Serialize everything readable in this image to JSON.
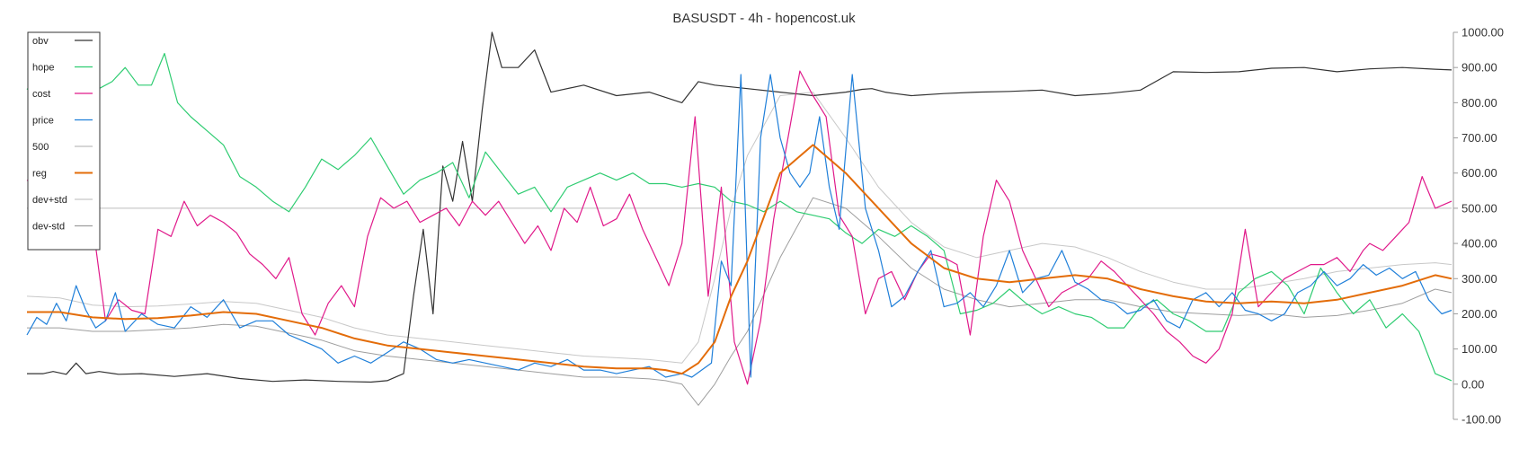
{
  "chart_data": {
    "type": "line",
    "title": "BASUSDT - 4h - hopencost.uk",
    "xlabel": "",
    "ylabel": "",
    "ylim": [
      -100,
      1000
    ],
    "y_ticks": [
      "1000.00",
      "900.00",
      "800.00",
      "700.00",
      "600.00",
      "500.00",
      "400.00",
      "300.00",
      "200.00",
      "100.00",
      "0.00",
      "-100.00"
    ],
    "grid": false,
    "reference_line": 500,
    "legend_position": "top-left",
    "legend": [
      {
        "name": "obv",
        "color": "#333333"
      },
      {
        "name": "hope",
        "color": "#2ecc71"
      },
      {
        "name": "cost",
        "color": "#e0198a"
      },
      {
        "name": "price",
        "color": "#1f7fd9"
      },
      {
        "name": "500",
        "color": "#bdbdbd"
      },
      {
        "name": "reg",
        "color": "#e36c09"
      },
      {
        "name": "dev+std",
        "color": "#c8c8c8"
      },
      {
        "name": "dev-std",
        "color": "#9e9e9e"
      }
    ],
    "series": [
      {
        "name": "obv",
        "color": "#333333",
        "width": 1.2,
        "x": [
          0,
          5,
          8,
          12,
          15,
          18,
          22,
          28,
          35,
          45,
          55,
          65,
          75,
          85,
          95,
          105,
          110,
          115,
          118,
          121,
          124,
          127,
          130,
          133,
          136,
          139,
          142,
          145,
          150,
          155,
          160,
          170,
          180,
          190,
          200,
          205,
          210,
          220,
          230,
          240,
          250,
          255,
          258,
          262,
          265,
          270,
          280,
          290,
          300,
          310,
          320,
          330,
          340,
          350,
          360,
          370,
          380,
          390,
          400,
          410,
          420,
          430,
          435
        ],
        "y": [
          30,
          30,
          36,
          28,
          60,
          30,
          36,
          28,
          30,
          22,
          30,
          16,
          8,
          12,
          8,
          6,
          10,
          30,
          250,
          440,
          200,
          620,
          520,
          690,
          520,
          780,
          1000,
          900,
          900,
          950,
          830,
          850,
          820,
          830,
          800,
          860,
          850,
          840,
          830,
          820,
          830,
          838,
          840,
          830,
          826,
          820,
          826,
          830,
          832,
          836,
          820,
          826,
          836,
          888,
          886,
          888,
          898,
          900,
          888,
          896,
          900,
          895,
          893
        ]
      },
      {
        "name": "hope",
        "color": "#2ecc71",
        "width": 1.2,
        "x": [
          0,
          3,
          6,
          10,
          14,
          18,
          22,
          26,
          30,
          34,
          38,
          42,
          46,
          50,
          55,
          60,
          65,
          70,
          75,
          80,
          85,
          90,
          95,
          100,
          105,
          110,
          115,
          120,
          125,
          130,
          135,
          140,
          145,
          150,
          155,
          160,
          165,
          170,
          175,
          180,
          185,
          190,
          195,
          200,
          205,
          210,
          215,
          220,
          225,
          230,
          235,
          240,
          245,
          250,
          255,
          260,
          265,
          270,
          275,
          280,
          285,
          290,
          295,
          300,
          305,
          310,
          315,
          320,
          325,
          330,
          335,
          340,
          345,
          350,
          355,
          360,
          365,
          370,
          375,
          380,
          385,
          390,
          395,
          400,
          405,
          410,
          415,
          420,
          425,
          430,
          435
        ],
        "y": [
          840,
          810,
          830,
          790,
          740,
          920,
          840,
          860,
          900,
          850,
          850,
          940,
          800,
          760,
          720,
          680,
          590,
          560,
          520,
          490,
          560,
          640,
          610,
          650,
          700,
          620,
          540,
          580,
          600,
          630,
          530,
          660,
          600,
          540,
          560,
          490,
          560,
          580,
          600,
          580,
          600,
          570,
          570,
          560,
          570,
          560,
          520,
          510,
          490,
          520,
          490,
          480,
          470,
          430,
          400,
          440,
          420,
          450,
          420,
          380,
          200,
          210,
          230,
          270,
          230,
          200,
          220,
          200,
          190,
          160,
          160,
          220,
          240,
          200,
          180,
          150,
          150,
          260,
          300,
          320,
          280,
          200,
          330,
          260,
          200,
          240,
          160,
          200,
          150,
          30,
          10
        ]
      },
      {
        "name": "cost",
        "color": "#e0198a",
        "width": 1.2,
        "x": [
          0,
          4,
          8,
          12,
          16,
          20,
          24,
          28,
          32,
          36,
          40,
          44,
          48,
          52,
          56,
          60,
          64,
          68,
          72,
          76,
          80,
          84,
          88,
          92,
          96,
          100,
          104,
          108,
          112,
          116,
          120,
          124,
          128,
          132,
          136,
          140,
          144,
          148,
          152,
          156,
          160,
          164,
          168,
          172,
          176,
          180,
          184,
          188,
          192,
          196,
          200,
          204,
          208,
          212,
          216,
          220,
          224,
          228,
          232,
          236,
          240,
          244,
          248,
          252,
          256,
          260,
          264,
          268,
          272,
          276,
          280,
          284,
          288,
          292,
          296,
          300,
          304,
          308,
          312,
          316,
          320,
          324,
          328,
          332,
          336,
          340,
          344,
          348,
          352,
          356,
          360,
          364,
          368,
          372,
          376,
          380,
          384,
          388,
          392,
          396,
          400,
          404,
          408,
          410,
          414,
          418,
          422,
          426,
          430,
          435
        ],
        "y": [
          580,
          560,
          690,
          650,
          600,
          460,
          180,
          240,
          210,
          200,
          440,
          420,
          520,
          450,
          480,
          460,
          430,
          370,
          340,
          300,
          360,
          200,
          140,
          230,
          280,
          220,
          420,
          530,
          500,
          520,
          460,
          480,
          500,
          450,
          520,
          480,
          520,
          460,
          400,
          450,
          380,
          500,
          460,
          560,
          450,
          470,
          540,
          440,
          360,
          280,
          400,
          760,
          250,
          560,
          120,
          0,
          180,
          470,
          680,
          890,
          820,
          760,
          480,
          420,
          200,
          300,
          320,
          240,
          320,
          370,
          360,
          340,
          140,
          420,
          580,
          520,
          380,
          300,
          220,
          260,
          280,
          300,
          350,
          320,
          280,
          240,
          200,
          150,
          120,
          80,
          60,
          100,
          200,
          440,
          220,
          260,
          300,
          320,
          340,
          340,
          360,
          320,
          380,
          400,
          380,
          420,
          460,
          590,
          500,
          520
        ]
      },
      {
        "name": "price",
        "color": "#1f7fd9",
        "width": 1.2,
        "x": [
          0,
          3,
          6,
          9,
          12,
          15,
          18,
          21,
          24,
          27,
          30,
          35,
          40,
          45,
          50,
          55,
          60,
          65,
          70,
          75,
          80,
          85,
          90,
          95,
          100,
          105,
          110,
          115,
          120,
          125,
          130,
          135,
          140,
          145,
          150,
          155,
          160,
          165,
          170,
          175,
          180,
          185,
          190,
          195,
          200,
          203,
          206,
          209,
          212,
          215,
          218,
          221,
          224,
          227,
          230,
          233,
          236,
          239,
          242,
          245,
          248,
          252,
          256,
          260,
          264,
          268,
          272,
          276,
          280,
          284,
          288,
          292,
          296,
          300,
          304,
          308,
          312,
          316,
          320,
          324,
          328,
          332,
          336,
          340,
          344,
          348,
          352,
          356,
          360,
          364,
          368,
          372,
          376,
          380,
          384,
          388,
          392,
          396,
          400,
          404,
          408,
          412,
          416,
          420,
          424,
          428,
          432,
          435
        ],
        "y": [
          140,
          190,
          170,
          230,
          180,
          280,
          210,
          160,
          180,
          260,
          150,
          200,
          170,
          160,
          220,
          190,
          240,
          160,
          180,
          180,
          140,
          120,
          100,
          60,
          80,
          60,
          90,
          120,
          100,
          70,
          60,
          70,
          60,
          50,
          40,
          60,
          50,
          70,
          40,
          40,
          30,
          40,
          50,
          20,
          30,
          20,
          40,
          60,
          350,
          280,
          880,
          20,
          700,
          880,
          700,
          600,
          560,
          600,
          760,
          560,
          440,
          880,
          500,
          380,
          220,
          250,
          320,
          380,
          220,
          230,
          260,
          220,
          280,
          380,
          260,
          300,
          310,
          380,
          290,
          270,
          240,
          230,
          200,
          210,
          240,
          180,
          160,
          240,
          260,
          220,
          260,
          210,
          200,
          180,
          200,
          260,
          280,
          320,
          280,
          300,
          340,
          310,
          330,
          300,
          320,
          240,
          200,
          210
        ]
      },
      {
        "name": "500",
        "color": "#bdbdbd",
        "width": 1.0,
        "x": [
          0,
          435
        ],
        "y": [
          500,
          500
        ]
      },
      {
        "name": "reg",
        "color": "#e36c09",
        "width": 2.0,
        "x": [
          0,
          10,
          20,
          30,
          40,
          50,
          60,
          70,
          80,
          90,
          100,
          110,
          120,
          130,
          140,
          150,
          160,
          170,
          180,
          190,
          195,
          200,
          205,
          210,
          215,
          220,
          230,
          240,
          250,
          260,
          270,
          280,
          290,
          300,
          310,
          320,
          330,
          340,
          350,
          360,
          370,
          380,
          390,
          400,
          410,
          420,
          430,
          435
        ],
        "y": [
          205,
          205,
          190,
          185,
          188,
          195,
          205,
          200,
          180,
          160,
          130,
          110,
          100,
          90,
          80,
          70,
          60,
          50,
          45,
          45,
          40,
          30,
          60,
          120,
          250,
          350,
          600,
          680,
          600,
          500,
          400,
          330,
          300,
          290,
          300,
          310,
          300,
          270,
          250,
          235,
          230,
          235,
          230,
          240,
          260,
          280,
          310,
          300
        ]
      },
      {
        "name": "dev+std",
        "color": "#c8c8c8",
        "width": 1.0,
        "x": [
          0,
          10,
          20,
          30,
          40,
          50,
          60,
          70,
          80,
          90,
          100,
          110,
          120,
          130,
          140,
          150,
          160,
          170,
          180,
          190,
          195,
          200,
          205,
          210,
          215,
          220,
          230,
          240,
          250,
          260,
          270,
          280,
          290,
          300,
          310,
          320,
          330,
          340,
          350,
          360,
          370,
          380,
          390,
          400,
          410,
          420,
          430,
          435
        ],
        "y": [
          250,
          245,
          225,
          220,
          222,
          228,
          235,
          230,
          210,
          190,
          160,
          140,
          130,
          120,
          110,
          100,
          90,
          80,
          75,
          70,
          65,
          60,
          120,
          300,
          500,
          650,
          820,
          830,
          700,
          560,
          460,
          390,
          360,
          380,
          400,
          390,
          360,
          320,
          290,
          270,
          270,
          285,
          300,
          320,
          330,
          340,
          345,
          340
        ]
      },
      {
        "name": "dev-std",
        "color": "#9e9e9e",
        "width": 1.0,
        "x": [
          0,
          10,
          20,
          30,
          40,
          50,
          60,
          70,
          80,
          90,
          100,
          110,
          120,
          130,
          140,
          150,
          160,
          170,
          180,
          190,
          195,
          200,
          205,
          210,
          215,
          220,
          230,
          240,
          250,
          260,
          270,
          280,
          290,
          300,
          310,
          320,
          330,
          340,
          350,
          360,
          370,
          380,
          390,
          400,
          410,
          420,
          430,
          435
        ],
        "y": [
          160,
          160,
          150,
          150,
          155,
          160,
          170,
          165,
          145,
          125,
          95,
          80,
          70,
          60,
          50,
          40,
          30,
          20,
          20,
          15,
          10,
          0,
          -60,
          0,
          80,
          150,
          360,
          530,
          500,
          420,
          330,
          270,
          240,
          220,
          230,
          240,
          240,
          220,
          205,
          200,
          195,
          200,
          190,
          195,
          210,
          230,
          270,
          260
        ]
      }
    ]
  }
}
